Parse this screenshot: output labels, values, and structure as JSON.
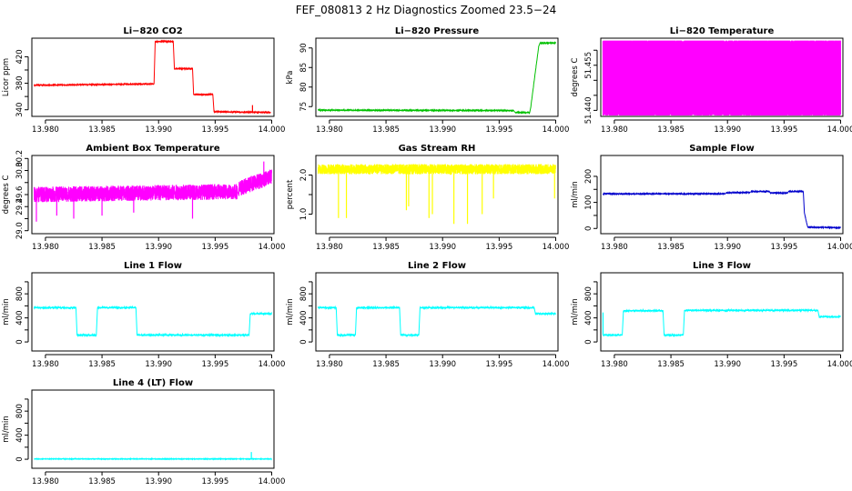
{
  "title": "FEF_080813  2 Hz Diagnostics Zoomed 23.5−24",
  "chart_data": [
    {
      "type": "line",
      "title": "Li−820 CO2",
      "ylabel": "Licor ppm",
      "color": "#ff0000",
      "xlim": [
        13.9788,
        14.0002
      ],
      "ylim": [
        330,
        448
      ],
      "xticks": [
        13.98,
        13.985,
        13.99,
        13.995,
        14.0
      ],
      "xtick_labels": [
        "13.980",
        "13.985",
        "13.990",
        "13.995",
        "14.000"
      ],
      "yticks": [
        340,
        360,
        380,
        400,
        420
      ],
      "ytick_labels": [
        "340",
        "",
        "380",
        "",
        "420"
      ],
      "noise": 0.5,
      "segments": [
        [
          13.979,
          13.9896,
          377,
          379
        ],
        [
          13.9897,
          13.9913,
          443,
          443
        ],
        [
          13.9914,
          13.993,
          402,
          402
        ],
        [
          13.9931,
          13.9948,
          363,
          363
        ],
        [
          13.9949,
          13.9999,
          337,
          336
        ]
      ],
      "spikes": [
        [
          13.9983,
          347
        ]
      ]
    },
    {
      "type": "line",
      "title": "Li−820 Pressure",
      "ylabel": "kPa",
      "color": "#00c000",
      "xlim": [
        13.9788,
        14.0002
      ],
      "ylim": [
        72.5,
        92.5
      ],
      "xticks": [
        13.98,
        13.985,
        13.99,
        13.995,
        14.0
      ],
      "xtick_labels": [
        "13.980",
        "13.985",
        "13.990",
        "13.995",
        "14.000"
      ],
      "yticks": [
        75,
        80,
        85,
        90
      ],
      "ytick_labels": [
        "75",
        "80",
        "85",
        "90"
      ],
      "noise": 0.08,
      "segments": [
        [
          13.979,
          13.9963,
          74.1,
          74.0
        ],
        [
          13.9964,
          13.9977,
          73.5,
          73.5
        ],
        [
          13.9978,
          13.9985,
          75,
          90.5
        ],
        [
          13.9986,
          14.0,
          91.2,
          91.3
        ]
      ],
      "spikes": []
    },
    {
      "type": "line",
      "title": "Li−820 Temperature",
      "ylabel": "degrees C",
      "color": "#ff00ff",
      "xlim": [
        13.9788,
        14.0002
      ],
      "ylim": [
        51.438,
        51.464
      ],
      "xticks": [
        13.98,
        13.985,
        13.99,
        13.995,
        14.0
      ],
      "xtick_labels": [
        "13.980",
        "13.985",
        "13.990",
        "13.995",
        "14.000"
      ],
      "yticks": [
        51.44,
        51.445,
        51.45,
        51.455,
        51.46
      ],
      "ytick_labels": [
        "51.440",
        "",
        "",
        "51.455",
        ""
      ],
      "noise": 0,
      "binary": [
        51.4385,
        51.463
      ],
      "segments": [
        [
          13.979,
          14.0,
          51.4385,
          51.4385
        ]
      ],
      "spikes": []
    },
    {
      "type": "line",
      "title": "Ambient Box Temperature",
      "ylabel": "degrees C",
      "color": "#ff00ff",
      "xlim": [
        13.9788,
        14.0002
      ],
      "ylim": [
        28.95,
        30.25
      ],
      "xticks": [
        13.98,
        13.985,
        13.99,
        13.995,
        14.0
      ],
      "xtick_labels": [
        "13.980",
        "13.985",
        "13.990",
        "13.995",
        "14.000"
      ],
      "yticks": [
        29.0,
        29.2,
        29.4,
        29.6,
        29.8,
        30.0,
        30.2
      ],
      "ytick_labels": [
        "29.0",
        "",
        "29.4",
        "29.6",
        "",
        "30.0",
        "30.2"
      ],
      "noise": 0.13,
      "segments": [
        [
          13.979,
          13.997,
          29.6,
          29.65
        ],
        [
          13.9971,
          14.0,
          29.7,
          29.9
        ]
      ],
      "spikes": [
        [
          13.9792,
          29.15
        ],
        [
          13.981,
          29.25
        ],
        [
          13.9825,
          29.2
        ],
        [
          13.985,
          29.25
        ],
        [
          13.9878,
          29.3
        ],
        [
          13.993,
          29.2
        ],
        [
          13.9993,
          30.15
        ]
      ]
    },
    {
      "type": "line",
      "title": "Gas Stream RH",
      "ylabel": "percent",
      "color": "#ffff00",
      "xlim": [
        13.9788,
        14.0002
      ],
      "ylim": [
        0.5,
        2.5
      ],
      "xticks": [
        13.98,
        13.985,
        13.99,
        13.995,
        14.0
      ],
      "xtick_labels": [
        "13.980",
        "13.985",
        "13.990",
        "13.995",
        "14.000"
      ],
      "yticks": [
        1.0,
        1.5,
        2.0
      ],
      "ytick_labels": [
        "1.0",
        "",
        "2.0"
      ],
      "noise": 0.13,
      "segments": [
        [
          13.979,
          14.0,
          2.15,
          2.15
        ]
      ],
      "spikes": [
        [
          13.9808,
          0.9
        ],
        [
          13.9815,
          0.9
        ],
        [
          13.9868,
          1.1
        ],
        [
          13.987,
          1.2
        ],
        [
          13.9888,
          0.9
        ],
        [
          13.9891,
          1.0
        ],
        [
          13.991,
          0.75
        ],
        [
          13.9922,
          0.75
        ],
        [
          13.9935,
          1.0
        ],
        [
          13.9945,
          1.4
        ],
        [
          13.9999,
          1.4
        ]
      ]
    },
    {
      "type": "line",
      "title": "Sample Flow",
      "ylabel": "ml/min",
      "color": "#0000cc",
      "xlim": [
        13.9788,
        14.0002
      ],
      "ylim": [
        -20,
        280
      ],
      "xticks": [
        13.98,
        13.985,
        13.99,
        13.995,
        14.0
      ],
      "xtick_labels": [
        "13.980",
        "13.985",
        "13.990",
        "13.995",
        "14.000"
      ],
      "yticks": [
        0,
        50,
        100,
        150,
        200
      ],
      "ytick_labels": [
        "0",
        "",
        "100",
        "",
        "200"
      ],
      "noise": 1.2,
      "segments": [
        [
          13.979,
          13.9898,
          133,
          133
        ],
        [
          13.9899,
          13.992,
          137,
          138
        ],
        [
          13.9921,
          13.9937,
          142,
          142
        ],
        [
          13.9938,
          13.9953,
          136,
          136
        ],
        [
          13.9954,
          13.9967,
          142,
          142
        ],
        [
          13.9968,
          13.997,
          60,
          20
        ],
        [
          13.9971,
          14.0,
          5,
          3
        ]
      ],
      "spikes": []
    },
    {
      "type": "line",
      "title": "Line 1 Flow",
      "ylabel": "ml/min",
      "color": "#00ffff",
      "xlim": [
        13.9788,
        14.0002
      ],
      "ylim": [
        -150,
        1150
      ],
      "xticks": [
        13.98,
        13.985,
        13.99,
        13.995,
        14.0
      ],
      "xtick_labels": [
        "13.980",
        "13.985",
        "13.990",
        "13.995",
        "14.000"
      ],
      "yticks": [
        0,
        200,
        400,
        600,
        800,
        1000
      ],
      "ytick_labels": [
        "0",
        "",
        "400",
        "",
        "800",
        ""
      ],
      "noise": 12,
      "segments": [
        [
          13.979,
          13.9827,
          570,
          570
        ],
        [
          13.9828,
          13.9845,
          115,
          115
        ],
        [
          13.9846,
          13.988,
          570,
          570
        ],
        [
          13.9881,
          13.998,
          115,
          115
        ],
        [
          13.9981,
          14.0,
          470,
          470
        ]
      ],
      "spikes": []
    },
    {
      "type": "line",
      "title": "Line 2 Flow",
      "ylabel": "ml/min",
      "color": "#00ffff",
      "xlim": [
        13.9788,
        14.0002
      ],
      "ylim": [
        -150,
        1150
      ],
      "xticks": [
        13.98,
        13.985,
        13.99,
        13.995,
        14.0
      ],
      "xtick_labels": [
        "13.980",
        "13.985",
        "13.990",
        "13.995",
        "14.000"
      ],
      "yticks": [
        0,
        200,
        400,
        600,
        800,
        1000
      ],
      "ytick_labels": [
        "0",
        "",
        "400",
        "",
        "800",
        ""
      ],
      "noise": 12,
      "segments": [
        [
          13.979,
          13.9806,
          570,
          570
        ],
        [
          13.9807,
          13.9823,
          115,
          115
        ],
        [
          13.9824,
          13.9862,
          570,
          570
        ],
        [
          13.9863,
          13.9879,
          115,
          115
        ],
        [
          13.988,
          13.9981,
          570,
          570
        ],
        [
          13.9982,
          14.0,
          470,
          470
        ]
      ],
      "spikes": []
    },
    {
      "type": "line",
      "title": "Line 3 Flow",
      "ylabel": "ml/min",
      "color": "#00ffff",
      "xlim": [
        13.9788,
        14.0002
      ],
      "ylim": [
        -150,
        1150
      ],
      "xticks": [
        13.98,
        13.985,
        13.99,
        13.995,
        14.0
      ],
      "xtick_labels": [
        "13.980",
        "13.985",
        "13.990",
        "13.995",
        "14.000"
      ],
      "yticks": [
        0,
        200,
        400,
        600,
        800,
        1000
      ],
      "ytick_labels": [
        "0",
        "",
        "400",
        "",
        "800",
        ""
      ],
      "noise": 10,
      "segments": [
        [
          13.979,
          13.9807,
          115,
          115
        ],
        [
          13.9808,
          13.9843,
          520,
          520
        ],
        [
          13.9844,
          13.9861,
          115,
          115
        ],
        [
          13.9862,
          13.998,
          525,
          525
        ],
        [
          13.9981,
          14.0,
          420,
          420
        ]
      ],
      "spikes": [
        [
          13.979,
          490
        ]
      ]
    },
    {
      "type": "line",
      "title": "Line 4 (LT) Flow",
      "ylabel": "ml/min",
      "color": "#00ffff",
      "xlim": [
        13.9788,
        14.0002
      ],
      "ylim": [
        -150,
        1150
      ],
      "xticks": [
        13.98,
        13.985,
        13.99,
        13.995,
        14.0
      ],
      "xtick_labels": [
        "13.980",
        "13.985",
        "13.990",
        "13.995",
        "14.000"
      ],
      "yticks": [
        0,
        200,
        400,
        600,
        800,
        1000
      ],
      "ytick_labels": [
        "0",
        "",
        "400",
        "",
        "800",
        ""
      ],
      "noise": 3,
      "segments": [
        [
          13.979,
          14.0,
          5,
          5
        ]
      ],
      "spikes": [
        [
          13.9982,
          120
        ]
      ]
    }
  ]
}
